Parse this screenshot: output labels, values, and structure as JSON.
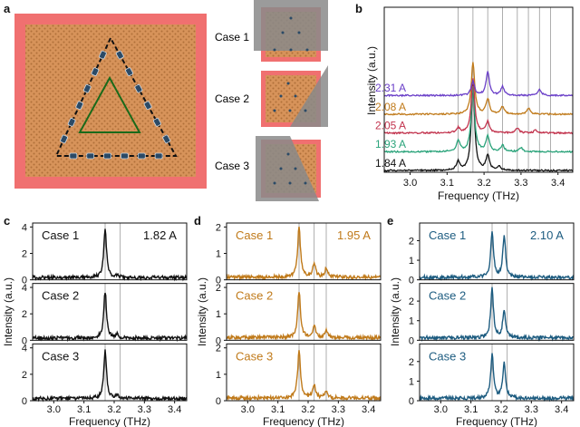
{
  "panel_labels": [
    "a",
    "b",
    "c",
    "d",
    "e"
  ],
  "schematic": {
    "case_labels": [
      "Case 1",
      "Case 2",
      "Case 3"
    ],
    "colors": {
      "border": "#f07070",
      "lattice": "#d7935a",
      "dot": "#b0703a",
      "triangle_outer": "#111111",
      "triangle_inner": "#1a6a1a",
      "site": "#2b4a66",
      "overlay": "#8a8a8a"
    }
  },
  "chart_data": [
    {
      "id": "b",
      "type": "line",
      "xlabel": "Frequency (THz)",
      "ylabel": "Intensity (a.u.)",
      "xlim": [
        2.93,
        3.44
      ],
      "x_ticks": [
        "3.0",
        "3.1",
        "3.2",
        "3.3",
        "3.4"
      ],
      "grid": "vertical reference lines",
      "vlines": [
        3.13,
        3.17,
        3.21,
        3.25,
        3.29,
        3.32,
        3.35,
        3.38
      ],
      "series": [
        {
          "name": "1.84 A",
          "color": "#111111",
          "offset": 0,
          "peaks": [
            [
              3.13,
              0.35
            ],
            [
              3.17,
              3.4
            ],
            [
              3.21,
              0.6
            ],
            [
              3.24,
              0.15
            ]
          ]
        },
        {
          "name": "1.93 A",
          "color": "#2aa37a",
          "offset": 1,
          "peaks": [
            [
              3.13,
              0.45
            ],
            [
              3.17,
              2.6
            ],
            [
              3.21,
              0.6
            ],
            [
              3.25,
              0.25
            ],
            [
              3.3,
              0.15
            ]
          ]
        },
        {
          "name": "2.05 A",
          "color": "#c2334d",
          "offset": 2,
          "peaks": [
            [
              3.13,
              0.2
            ],
            [
              3.17,
              2.2
            ],
            [
              3.21,
              0.45
            ],
            [
              3.29,
              0.2
            ],
            [
              3.34,
              0.12
            ]
          ]
        },
        {
          "name": "2.08 A",
          "color": "#c07a1a",
          "offset": 3,
          "peaks": [
            [
              3.17,
              2.1
            ],
            [
              3.21,
              0.6
            ],
            [
              3.25,
              0.3
            ],
            [
              3.32,
              0.25
            ]
          ]
        },
        {
          "name": "2.31 A",
          "color": "#6a3fc8",
          "offset": 4,
          "peaks": [
            [
              3.17,
              0.55
            ],
            [
              3.21,
              0.95
            ],
            [
              3.25,
              0.35
            ],
            [
              3.35,
              0.25
            ]
          ]
        }
      ]
    },
    {
      "id": "c",
      "type": "line",
      "current": "1.82 A",
      "color": "#111111",
      "xlabel": "Frequency (THz)",
      "ylabel": "Intensity (a.u.)",
      "xlim": [
        2.93,
        3.44
      ],
      "x_ticks": [
        "3.0",
        "3.1",
        "3.2",
        "3.3",
        "3.4"
      ],
      "ylim": [
        0,
        4.3
      ],
      "y_ticks": [
        "0",
        "2",
        "4"
      ],
      "vlines": [
        3.17,
        3.22
      ],
      "series": [
        {
          "name": "Case 1",
          "peaks": [
            [
              3.17,
              3.7
            ],
            [
              3.21,
              0.2
            ]
          ]
        },
        {
          "name": "Case 2",
          "peaks": [
            [
              3.17,
              3.5
            ],
            [
              3.21,
              0.3
            ]
          ]
        },
        {
          "name": "Case 3",
          "peaks": [
            [
              3.17,
              3.6
            ],
            [
              3.21,
              0.25
            ]
          ]
        }
      ]
    },
    {
      "id": "d",
      "type": "line",
      "current": "1.95 A",
      "color": "#c07a1a",
      "xlabel": "Frequency (THz)",
      "ylabel": "Intensity (a.u.)",
      "xlim": [
        2.93,
        3.44
      ],
      "x_ticks": [
        "3.0",
        "3.1",
        "3.2",
        "3.3",
        "3.4"
      ],
      "ylim": [
        0,
        2.15
      ],
      "y_ticks": [
        "0",
        "1",
        "2"
      ],
      "vlines": [
        3.17,
        3.22,
        3.26
      ],
      "series": [
        {
          "name": "Case 1",
          "peaks": [
            [
              3.17,
              1.9
            ],
            [
              3.22,
              0.5
            ],
            [
              3.26,
              0.35
            ]
          ]
        },
        {
          "name": "Case 2",
          "peaks": [
            [
              3.17,
              1.75
            ],
            [
              3.22,
              0.45
            ],
            [
              3.26,
              0.3
            ]
          ]
        },
        {
          "name": "Case 3",
          "peaks": [
            [
              3.17,
              1.8
            ],
            [
              3.22,
              0.5
            ],
            [
              3.26,
              0.25
            ]
          ]
        }
      ]
    },
    {
      "id": "e",
      "type": "line",
      "current": "2.10 A",
      "color": "#1d5c80",
      "xlabel": "Frequency (THz)",
      "ylabel": "Intensity (a.u.)",
      "xlim": [
        2.93,
        3.44
      ],
      "x_ticks": [
        "3.0",
        "3.1",
        "3.2",
        "3.3",
        "3.4"
      ],
      "ylim": [
        0,
        2.9
      ],
      "y_ticks": [
        "0",
        "1",
        "2"
      ],
      "vlines": [
        3.17,
        3.22
      ],
      "series": [
        {
          "name": "Case 1",
          "peaks": [
            [
              3.17,
              2.3
            ],
            [
              3.21,
              2.1
            ]
          ]
        },
        {
          "name": "Case 2",
          "peaks": [
            [
              3.17,
              2.5
            ],
            [
              3.21,
              1.4
            ]
          ]
        },
        {
          "name": "Case 3",
          "peaks": [
            [
              3.17,
              2.2
            ],
            [
              3.21,
              1.8
            ]
          ]
        }
      ]
    }
  ]
}
